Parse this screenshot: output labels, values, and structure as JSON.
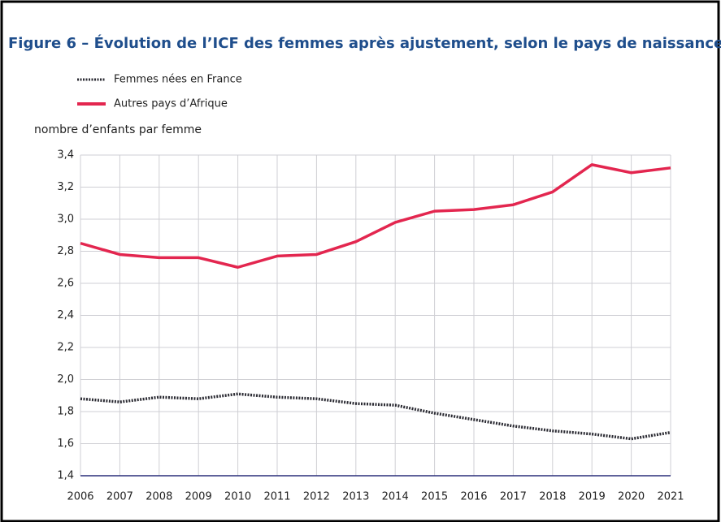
{
  "chart_data": {
    "type": "line",
    "title": "Figure 6 – Évolution de l’ICF des femmes après ajustement, selon le pays de naissance",
    "y_label": "nombre d’enfants par femme",
    "x": [
      2006,
      2007,
      2008,
      2009,
      2010,
      2011,
      2012,
      2013,
      2014,
      2015,
      2016,
      2017,
      2018,
      2019,
      2020,
      2021
    ],
    "xlim": [
      2006,
      2021
    ],
    "xticks": [
      2006,
      2007,
      2008,
      2009,
      2010,
      2011,
      2012,
      2013,
      2014,
      2015,
      2016,
      2017,
      2018,
      2019,
      2020,
      2021
    ],
    "ylim": [
      1.4,
      3.4
    ],
    "yticks": [
      {
        "value": 1.4,
        "label": "1,4"
      },
      {
        "value": 1.6,
        "label": "1,6"
      },
      {
        "value": 1.8,
        "label": "1,8"
      },
      {
        "value": 2.0,
        "label": "2,0"
      },
      {
        "value": 2.2,
        "label": "2,2"
      },
      {
        "value": 2.4,
        "label": "2,4"
      },
      {
        "value": 2.6,
        "label": "2,6"
      },
      {
        "value": 2.8,
        "label": "2,8"
      },
      {
        "value": 3.0,
        "label": "3,0"
      },
      {
        "value": 3.2,
        "label": "3,2"
      },
      {
        "value": 3.4,
        "label": "3,4"
      }
    ],
    "grid": true,
    "series": [
      {
        "name": "Femmes nées en France",
        "color": "#2b2b33",
        "dashed": true,
        "values": [
          1.88,
          1.86,
          1.89,
          1.88,
          1.91,
          1.89,
          1.88,
          1.85,
          1.84,
          1.79,
          1.75,
          1.71,
          1.68,
          1.66,
          1.63,
          1.67
        ]
      },
      {
        "name": "Autres pays d’Afrique",
        "color": "#e3264f",
        "dashed": false,
        "values": [
          2.85,
          2.78,
          2.76,
          2.76,
          2.7,
          2.77,
          2.78,
          2.86,
          2.98,
          3.05,
          3.06,
          3.09,
          3.17,
          3.34,
          3.29,
          3.32
        ]
      }
    ]
  }
}
